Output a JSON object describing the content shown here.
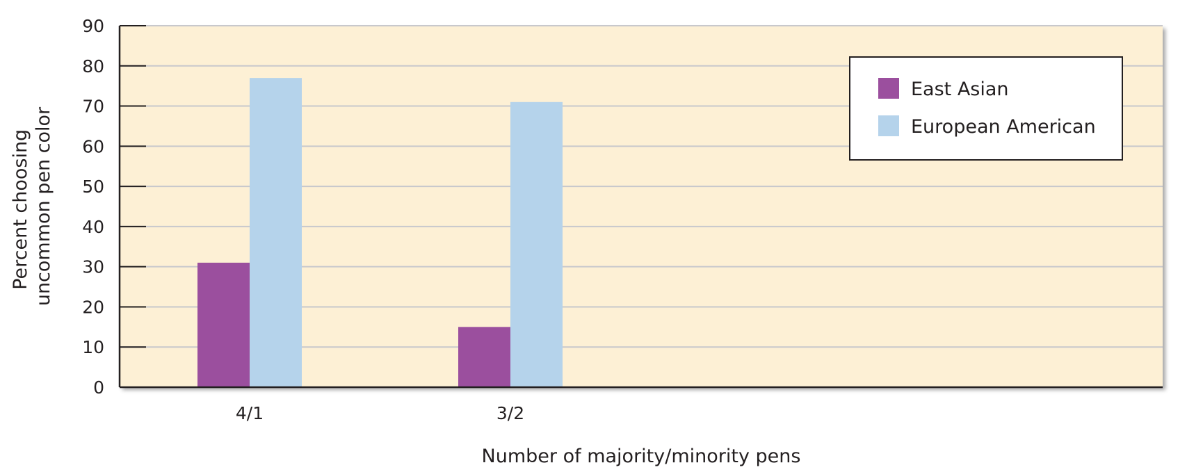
{
  "chart_data": {
    "type": "bar",
    "title": "",
    "xlabel": "Number of majority/minority pens",
    "ylabel_lines": [
      "Percent choosing",
      "uncommon pen color"
    ],
    "categories": [
      "4/1",
      "3/2"
    ],
    "series": [
      {
        "name": "East Asian",
        "values": [
          31,
          15
        ],
        "color": "#9b4f9e"
      },
      {
        "name": "European American",
        "values": [
          77,
          71
        ],
        "color": "#b5d3eb"
      }
    ],
    "ylim": [
      0,
      90
    ],
    "yticks": [
      0,
      10,
      20,
      30,
      40,
      50,
      60,
      70,
      80,
      90
    ],
    "grid": true,
    "legend_position": "top-right",
    "colors": {
      "plot_background": "#fdf0d5",
      "grid": "#c8c8cc",
      "axis": "#231f20"
    }
  }
}
